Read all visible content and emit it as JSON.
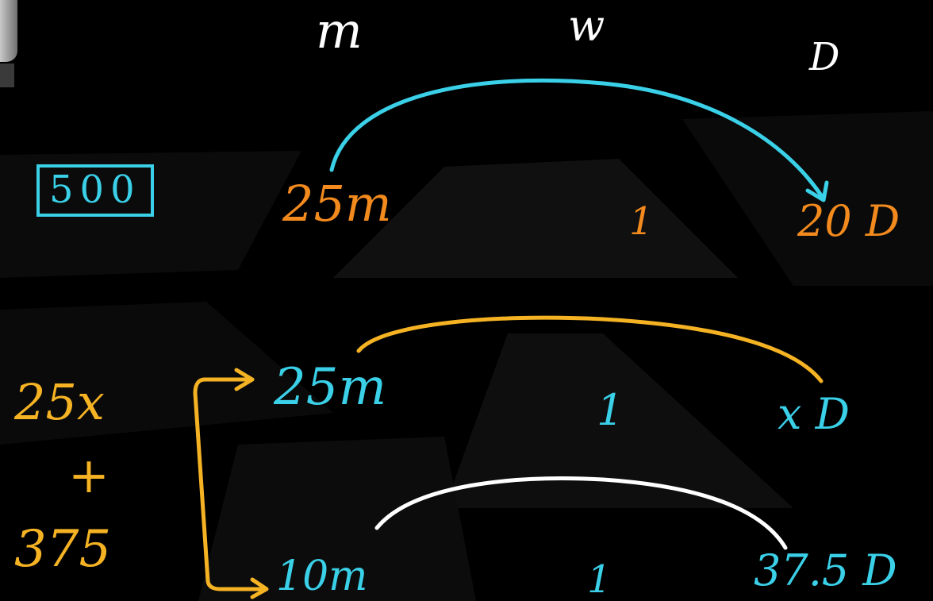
{
  "headers": {
    "m": "m",
    "w": "w",
    "d": "D"
  },
  "boxed_total": "500",
  "row1": {
    "m": "25m",
    "w": "1",
    "d": "20 D"
  },
  "row2": {
    "m": "25m",
    "w": "1",
    "d": "x D"
  },
  "row3": {
    "m": "10m",
    "w": "1",
    "d": "37.5 D"
  },
  "left_sum": {
    "top": "25x",
    "op": "+",
    "bottom": "375"
  },
  "colors": {
    "white": "#ffffff",
    "orange": "#f28a1e",
    "cyan": "#3ad0e8",
    "yellow": "#f5b324",
    "background": "#000000"
  }
}
